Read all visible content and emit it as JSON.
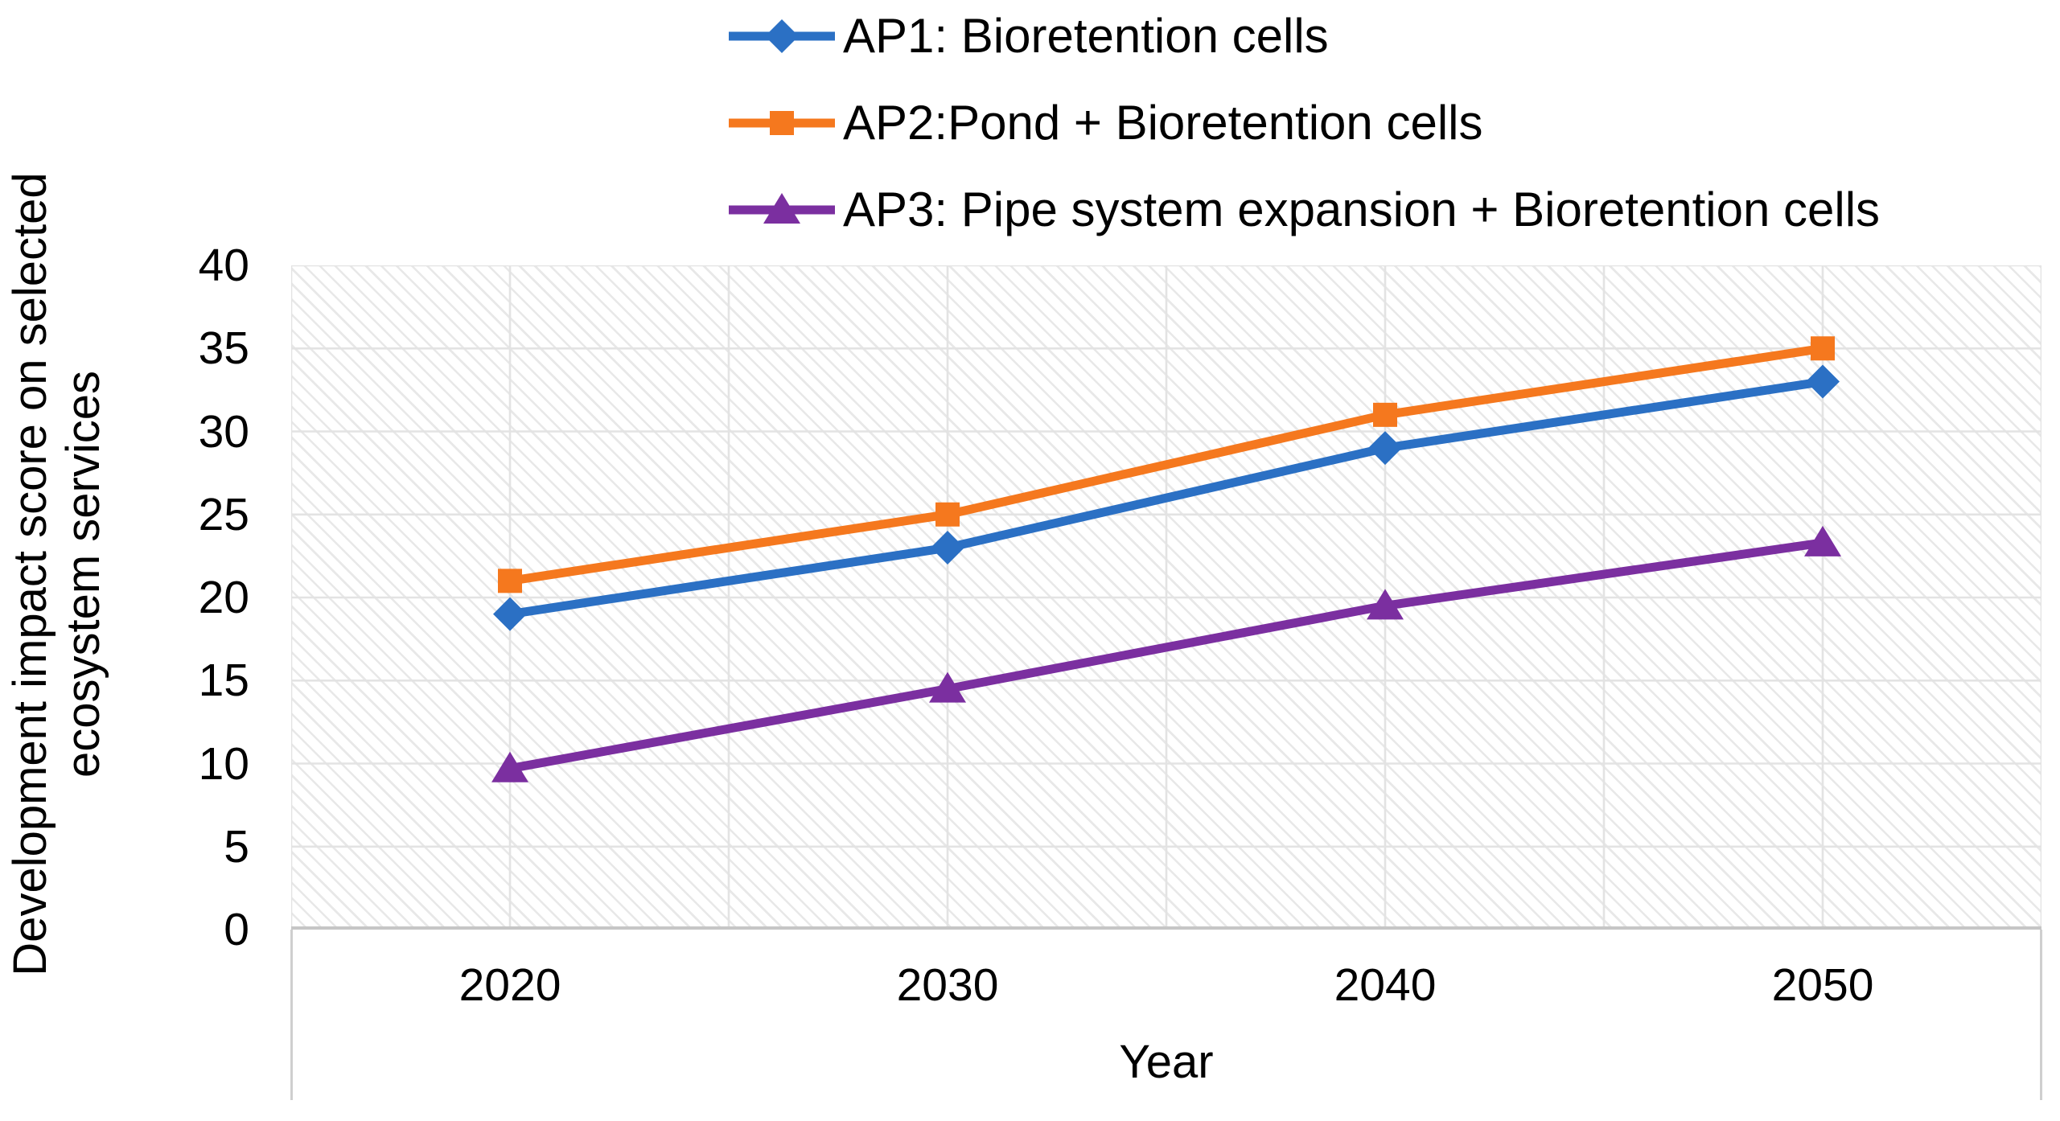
{
  "chart_data": {
    "type": "line",
    "xlabel": "Year",
    "ylabel": "Development impact score on selected ecosystem services",
    "ylabel_lines": [
      "Development impact score on selected",
      "ecosystem services"
    ],
    "categories": [
      "2020",
      "2030",
      "2040",
      "2050"
    ],
    "y_ticks": [
      0,
      5,
      10,
      15,
      20,
      25,
      30,
      35,
      40
    ],
    "ylim": [
      0,
      40
    ],
    "grid": {
      "horizontal": true,
      "vertical": true,
      "plot_fill": "diagonal-hatch"
    },
    "legend_position": "top",
    "series": [
      {
        "name": "AP1: Bioretention cells",
        "color": "#2B70C4",
        "marker": "diamond",
        "values": [
          19,
          23,
          29,
          33
        ]
      },
      {
        "name": "AP2:Pond + Bioretention cells",
        "color": "#F5781E",
        "marker": "square",
        "values": [
          21,
          25,
          31,
          35
        ]
      },
      {
        "name": "AP3: Pipe system expansion + Bioretention cells",
        "color": "#7B2FA0",
        "marker": "triangle",
        "values": [
          9.7,
          14.5,
          19.5,
          23.3
        ]
      }
    ],
    "style_colors": {
      "gridline": "#e3e3e3",
      "axis_line": "#c6c6c6",
      "hatch": "#b2b2b2",
      "text": "#000000"
    }
  }
}
